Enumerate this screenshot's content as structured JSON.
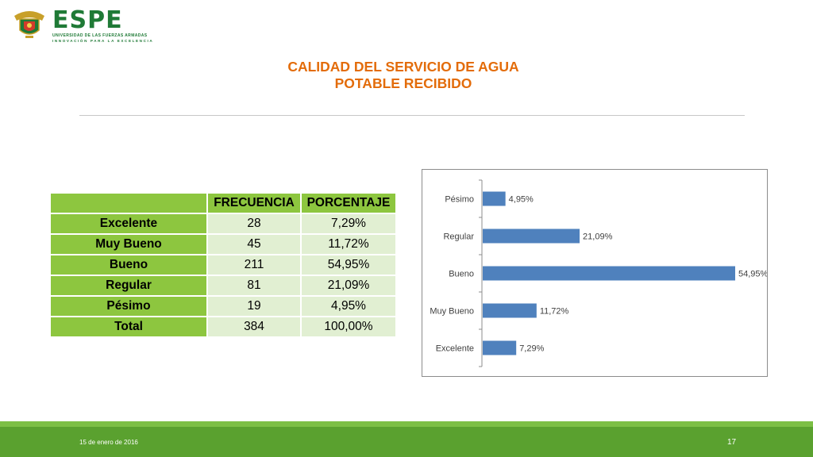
{
  "header": {
    "logo_name": "ESPE",
    "logo_subtitle": "UNIVERSIDAD DE LAS FUERZAS ARMADAS",
    "logo_tagline": "INNOVACIÓN PARA LA EXCELENCIA"
  },
  "title": {
    "line1": "CALIDAD DEL SERVICIO DE AGUA",
    "line2": "POTABLE RECIBIDO"
  },
  "table": {
    "headers": [
      "",
      "FRECUENCIA",
      "PORCENTAJE"
    ],
    "rows": [
      {
        "label": "Excelente",
        "frecuencia": "28",
        "porcentaje": "7,29%"
      },
      {
        "label": "Muy Bueno",
        "frecuencia": "45",
        "porcentaje": "11,72%"
      },
      {
        "label": "Bueno",
        "frecuencia": "211",
        "porcentaje": "54,95%"
      },
      {
        "label": "Regular",
        "frecuencia": "81",
        "porcentaje": "21,09%"
      },
      {
        "label": "Pésimo",
        "frecuencia": "19",
        "porcentaje": "4,95%"
      },
      {
        "label": "Total",
        "frecuencia": "384",
        "porcentaje": "100,00%"
      }
    ]
  },
  "chart_data": {
    "type": "bar",
    "orientation": "horizontal",
    "categories": [
      "Pésimo",
      "Regular",
      "Bueno",
      "Muy Bueno",
      "Excelente"
    ],
    "values": [
      4.95,
      21.09,
      54.95,
      11.72,
      7.29
    ],
    "data_labels": [
      "4,95%",
      "21,09%",
      "54,95%",
      "11,72%",
      "7,29%"
    ],
    "bar_color": "#4f81bd",
    "xlim": [
      0,
      54.95
    ],
    "grid": false
  },
  "footer": {
    "date": "15 de enero de 2016",
    "page": "17"
  },
  "colors": {
    "title": "#e36c0a",
    "table_header": "#8dc63f",
    "table_cell": "#e1efd2",
    "footer": "#5aa12f",
    "brand": "#1f7a36"
  }
}
